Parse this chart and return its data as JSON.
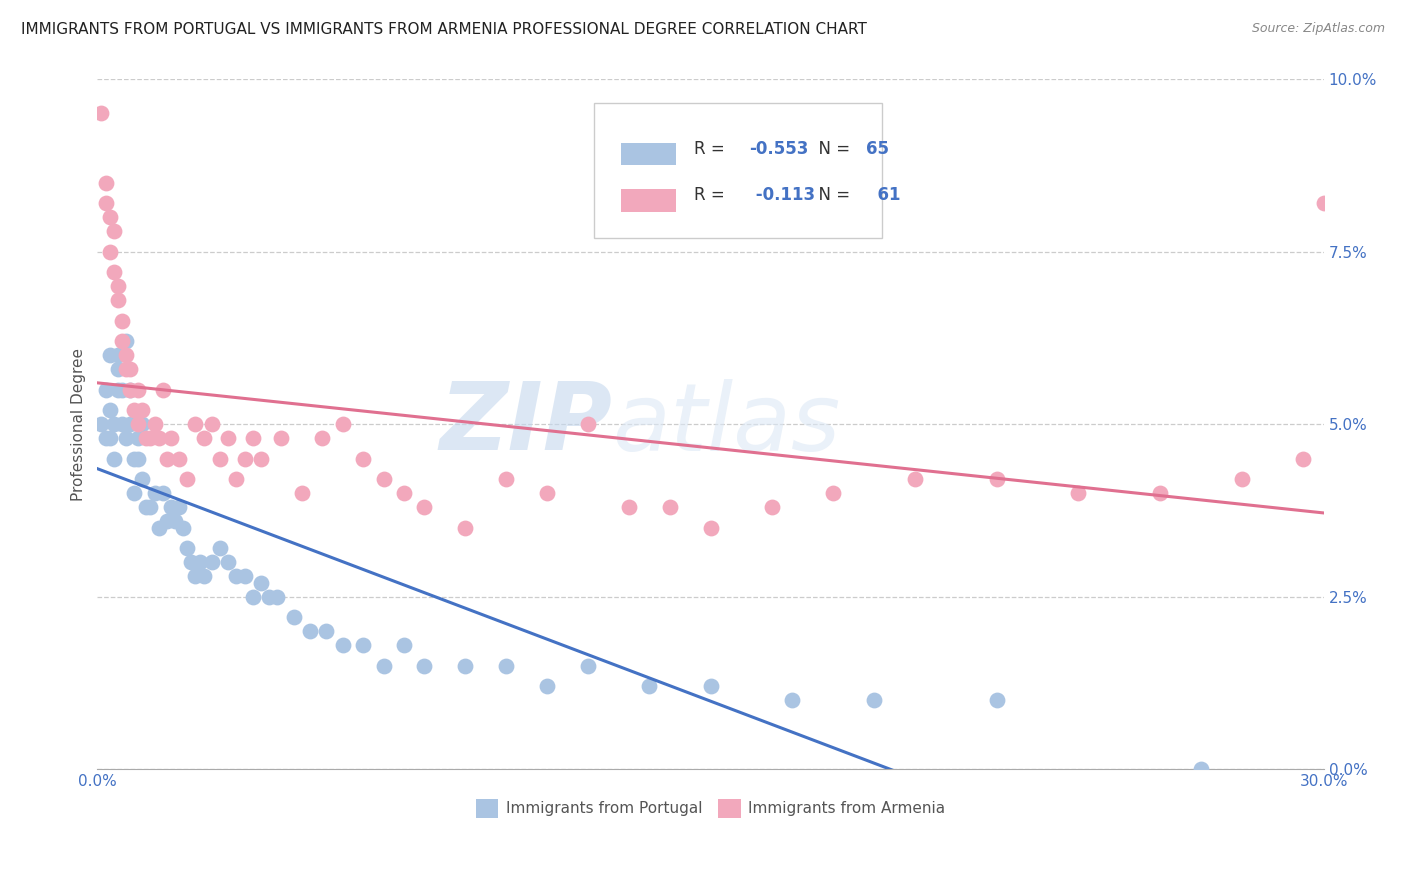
{
  "title": "IMMIGRANTS FROM PORTUGAL VS IMMIGRANTS FROM ARMENIA PROFESSIONAL DEGREE CORRELATION CHART",
  "source": "Source: ZipAtlas.com",
  "ylabel": "Professional Degree",
  "xlim": [
    0.0,
    0.3
  ],
  "ylim": [
    0.0,
    0.1
  ],
  "xtick_vals": [
    0.0,
    0.3
  ],
  "xtick_labels": [
    "0.0%",
    "30.0%"
  ],
  "ytick_vals": [
    0.0,
    0.025,
    0.05,
    0.075,
    0.1
  ],
  "ytick_labels": [
    "0.0%",
    "2.5%",
    "5.0%",
    "7.5%",
    "10.0%"
  ],
  "color_portugal": "#aac4e2",
  "color_armenia": "#f2a8bc",
  "line_portugal": "#4472c4",
  "line_armenia": "#e07090",
  "R_portugal": -0.553,
  "N_portugal": 65,
  "R_armenia": -0.113,
  "N_armenia": 61,
  "legend_label_portugal": "Immigrants from Portugal",
  "legend_label_armenia": "Immigrants from Armenia",
  "watermark": "ZIPatlas",
  "portugal_x": [
    0.001,
    0.002,
    0.002,
    0.003,
    0.003,
    0.003,
    0.004,
    0.004,
    0.005,
    0.005,
    0.005,
    0.006,
    0.006,
    0.007,
    0.007,
    0.008,
    0.008,
    0.009,
    0.009,
    0.01,
    0.01,
    0.011,
    0.011,
    0.012,
    0.013,
    0.014,
    0.015,
    0.016,
    0.017,
    0.018,
    0.019,
    0.02,
    0.021,
    0.022,
    0.023,
    0.024,
    0.025,
    0.026,
    0.028,
    0.03,
    0.032,
    0.034,
    0.036,
    0.038,
    0.04,
    0.042,
    0.044,
    0.048,
    0.052,
    0.056,
    0.06,
    0.065,
    0.07,
    0.075,
    0.08,
    0.09,
    0.1,
    0.11,
    0.12,
    0.135,
    0.15,
    0.17,
    0.19,
    0.22,
    0.27
  ],
  "portugal_y": [
    0.05,
    0.055,
    0.048,
    0.052,
    0.048,
    0.06,
    0.05,
    0.045,
    0.06,
    0.058,
    0.055,
    0.055,
    0.05,
    0.062,
    0.048,
    0.055,
    0.05,
    0.045,
    0.04,
    0.048,
    0.045,
    0.05,
    0.042,
    0.038,
    0.038,
    0.04,
    0.035,
    0.04,
    0.036,
    0.038,
    0.036,
    0.038,
    0.035,
    0.032,
    0.03,
    0.028,
    0.03,
    0.028,
    0.03,
    0.032,
    0.03,
    0.028,
    0.028,
    0.025,
    0.027,
    0.025,
    0.025,
    0.022,
    0.02,
    0.02,
    0.018,
    0.018,
    0.015,
    0.018,
    0.015,
    0.015,
    0.015,
    0.012,
    0.015,
    0.012,
    0.012,
    0.01,
    0.01,
    0.01,
    0.0
  ],
  "armenia_x": [
    0.001,
    0.002,
    0.002,
    0.003,
    0.003,
    0.004,
    0.004,
    0.005,
    0.005,
    0.006,
    0.006,
    0.007,
    0.007,
    0.008,
    0.008,
    0.009,
    0.01,
    0.01,
    0.011,
    0.012,
    0.013,
    0.014,
    0.015,
    0.016,
    0.017,
    0.018,
    0.02,
    0.022,
    0.024,
    0.026,
    0.028,
    0.03,
    0.032,
    0.034,
    0.036,
    0.038,
    0.04,
    0.045,
    0.05,
    0.055,
    0.06,
    0.065,
    0.07,
    0.075,
    0.08,
    0.09,
    0.1,
    0.11,
    0.12,
    0.13,
    0.14,
    0.15,
    0.165,
    0.18,
    0.2,
    0.22,
    0.24,
    0.26,
    0.28,
    0.295,
    0.3
  ],
  "armenia_y": [
    0.095,
    0.085,
    0.082,
    0.08,
    0.075,
    0.078,
    0.072,
    0.07,
    0.068,
    0.065,
    0.062,
    0.06,
    0.058,
    0.058,
    0.055,
    0.052,
    0.055,
    0.05,
    0.052,
    0.048,
    0.048,
    0.05,
    0.048,
    0.055,
    0.045,
    0.048,
    0.045,
    0.042,
    0.05,
    0.048,
    0.05,
    0.045,
    0.048,
    0.042,
    0.045,
    0.048,
    0.045,
    0.048,
    0.04,
    0.048,
    0.05,
    0.045,
    0.042,
    0.04,
    0.038,
    0.035,
    0.042,
    0.04,
    0.05,
    0.038,
    0.038,
    0.035,
    0.038,
    0.04,
    0.042,
    0.042,
    0.04,
    0.04,
    0.042,
    0.045,
    0.082
  ]
}
